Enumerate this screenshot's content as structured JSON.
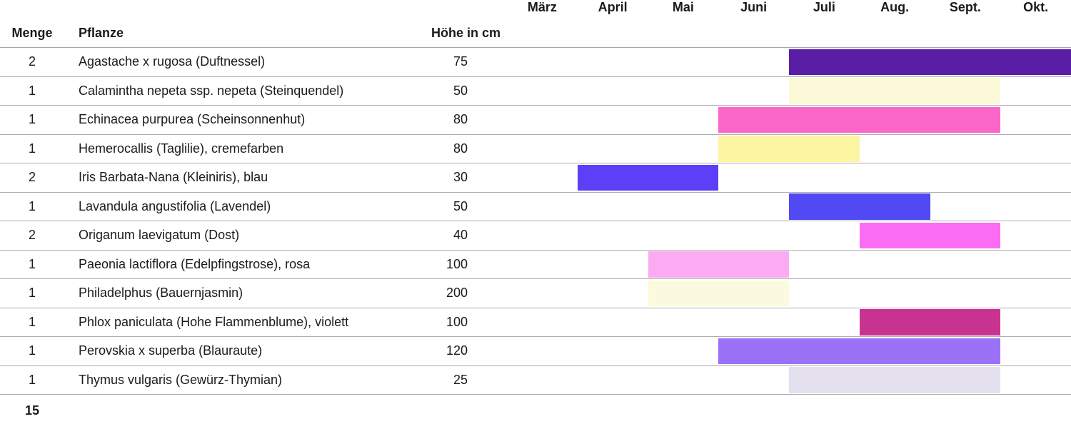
{
  "header": {
    "menge": "Menge",
    "pflanze": "Pflanze",
    "hoehe": "Höhe in cm"
  },
  "chart_data": {
    "type": "table",
    "subtype": "gantt-bloom-calendar",
    "columns": [
      "Menge",
      "Pflanze",
      "Höhe in cm"
    ],
    "month_axis": [
      "März",
      "April",
      "Mai",
      "Juni",
      "Juli",
      "Aug.",
      "Sept.",
      "Okt."
    ],
    "rows": [
      {
        "menge": "2",
        "pflanze": "Agastache x rugosa (Duftnessel)",
        "hoehe_cm": "75",
        "bloom_start": "Juli",
        "bloom_end": "Okt.",
        "bar_color": "#5a1da6"
      },
      {
        "menge": "1",
        "pflanze": "Calamintha nepeta ssp. nepeta (Steinquendel)",
        "hoehe_cm": "50",
        "bloom_start": "Juli",
        "bloom_end": "Sept.",
        "bar_color": "#fcf9d9"
      },
      {
        "menge": "1",
        "pflanze": "Echinacea purpurea (Scheinsonnenhut)",
        "hoehe_cm": "80",
        "bloom_start": "Juni",
        "bloom_end": "Sept.",
        "bar_color": "#fb66c9"
      },
      {
        "menge": "1",
        "pflanze": "Hemerocallis (Taglilie), cremefarben",
        "hoehe_cm": "80",
        "bloom_start": "Juni",
        "bloom_end": "Juli",
        "bar_color": "#fcf6a3"
      },
      {
        "menge": "2",
        "pflanze": "Iris Barbata-Nana (Kleiniris), blau",
        "hoehe_cm": "30",
        "bloom_start": "April",
        "bloom_end": "Mai",
        "bar_color": "#5c3ff7"
      },
      {
        "menge": "1",
        "pflanze": "Lavandula angustifolia (Lavendel)",
        "hoehe_cm": "50",
        "bloom_start": "Juli",
        "bloom_end": "Aug.",
        "bar_color": "#5149f3"
      },
      {
        "menge": "2",
        "pflanze": "Origanum laevigatum (Dost)",
        "hoehe_cm": "40",
        "bloom_start": "Aug.",
        "bloom_end": "Sept.",
        "bar_color": "#fb6cf5"
      },
      {
        "menge": "1",
        "pflanze": "Paeonia lactiflora (Edelpfingstrose), rosa",
        "hoehe_cm": "100",
        "bloom_start": "Mai",
        "bloom_end": "Juni",
        "bar_color": "#fcabf2"
      },
      {
        "menge": "1",
        "pflanze": "Philadelphus (Bauernjasmin)",
        "hoehe_cm": "200",
        "bloom_start": "Mai",
        "bloom_end": "Juni",
        "bar_color": "#fcfade"
      },
      {
        "menge": "1",
        "pflanze": "Phlox paniculata (Hohe Flammenblume), violett",
        "hoehe_cm": "100",
        "bloom_start": "Aug.",
        "bloom_end": "Sept.",
        "bar_color": "#c93390"
      },
      {
        "menge": "1",
        "pflanze": "Perovskia x superba (Blauraute)",
        "hoehe_cm": "120",
        "bloom_start": "Juni",
        "bloom_end": "Sept.",
        "bar_color": "#9b72f7"
      },
      {
        "menge": "1",
        "pflanze": "Thymus vulgaris (Gewürz-Thymian)",
        "hoehe_cm": "25",
        "bloom_start": "Juli",
        "bloom_end": "Sept.",
        "bar_color": "#e4e0ee"
      }
    ],
    "total_menge": "15"
  },
  "colors": {
    "background": "#ffffff",
    "text": "#1b1b1b",
    "row_border": "#adadad",
    "header_border": "#a6a6a6"
  }
}
